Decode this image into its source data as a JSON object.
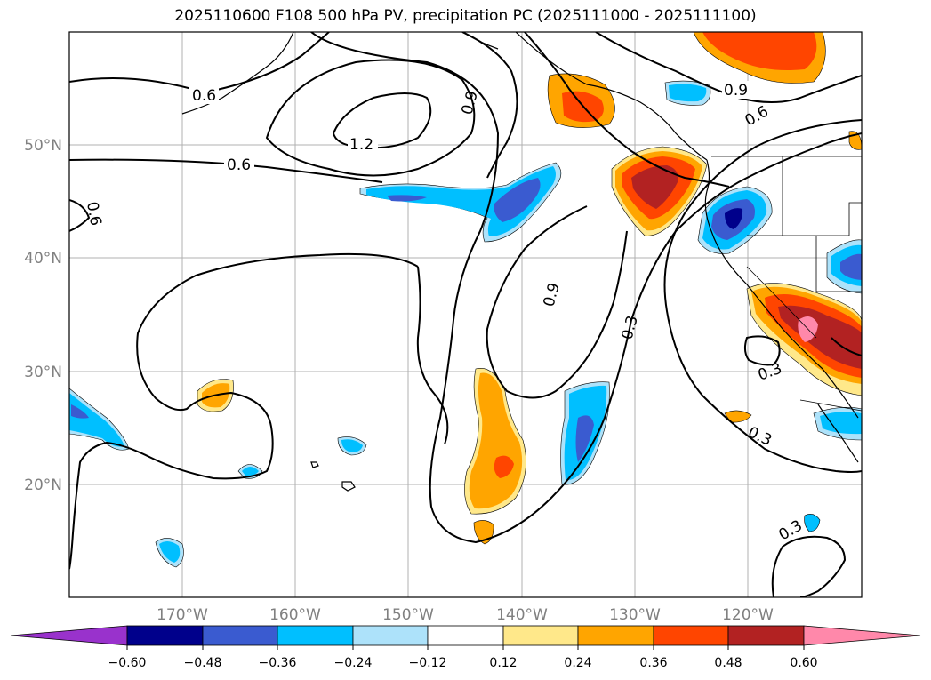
{
  "title": "2025110600 F108 500 hPa PV, precipitation PC (2025111000 - 2025111100)",
  "lon_labels": [
    "170°W",
    "160°W",
    "150°W",
    "140°W",
    "130°W",
    "120°W"
  ],
  "lat_labels": [
    "50°N",
    "40°N",
    "30°N",
    "20°N"
  ],
  "contour_labels": {
    "c06a": "0.6",
    "c06b": "0.6",
    "c09a": "0.9",
    "c12": "1.2",
    "c09b": "0.9",
    "c06c": "0.6",
    "c06d": "0.6",
    "c09c": "0.9",
    "c03a": "0.3",
    "c03b": "0.3",
    "c03c": "0.3",
    "c03d": "0.3"
  },
  "colorbar": {
    "ticks": [
      "−0.60",
      "−0.48",
      "−0.36",
      "−0.24",
      "−0.12",
      "0.12",
      "0.24",
      "0.36",
      "0.48",
      "0.60"
    ],
    "colors": [
      "#9932cc",
      "#00008b",
      "#3a5bd0",
      "#00bfff",
      "#ade2fa",
      "#ffffff",
      "#ffe88a",
      "#ffa500",
      "#ff4500",
      "#b22222",
      "#ff88aa"
    ]
  },
  "chart_data": {
    "type": "heatmap",
    "title": "2025110600 F108 500 hPa PV, precipitation PC (2025111000 - 2025111100)",
    "variables": [
      "500 hPa PV (contours)",
      "precipitation PC (shading)"
    ],
    "lon_range": [
      -180,
      -110
    ],
    "lat_range": [
      10,
      60
    ],
    "contour_levels": [
      0.3,
      0.6,
      0.9,
      1.2
    ],
    "color_levels": [
      -0.6,
      -0.48,
      -0.36,
      -0.24,
      -0.12,
      0.12,
      0.24,
      0.36,
      0.48,
      0.6
    ]
  }
}
